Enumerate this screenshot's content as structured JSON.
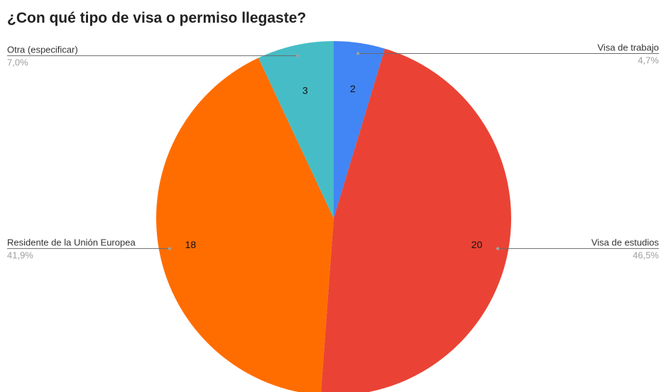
{
  "chart_data": {
    "type": "pie",
    "title": "¿Con qué tipo de visa o permiso llegaste?",
    "slices": [
      {
        "label": "Visa de trabajo",
        "value": 2,
        "percent": "4,7%",
        "color": "#4285f4"
      },
      {
        "label": "Visa de estudios",
        "value": 20,
        "percent": "46,5%",
        "color": "#ea4335"
      },
      {
        "label": "Residente de la Unión Europea",
        "value": 18,
        "percent": "41,9%",
        "color": "#ff6d00"
      },
      {
        "label": "Otra (especificar)",
        "value": 3,
        "percent": "7,0%",
        "color": "#46bdc6"
      }
    ]
  }
}
